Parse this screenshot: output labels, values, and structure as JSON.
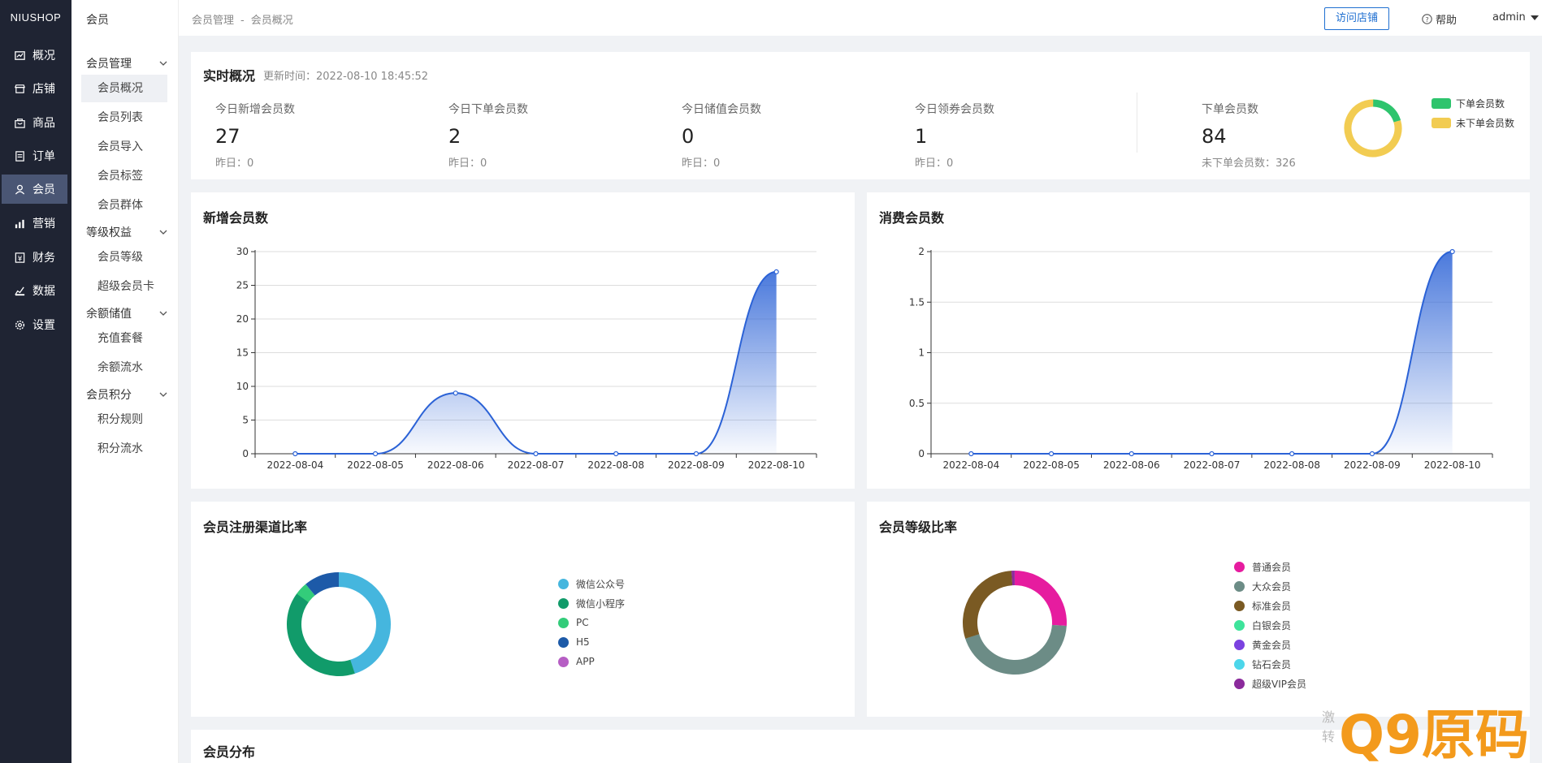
{
  "brand": "NIUSHOP",
  "nav": [
    {
      "label": "概况",
      "icon": "overview-icon"
    },
    {
      "label": "店铺",
      "icon": "store-icon"
    },
    {
      "label": "商品",
      "icon": "goods-icon"
    },
    {
      "label": "订单",
      "icon": "order-icon"
    },
    {
      "label": "会员",
      "icon": "member-icon",
      "active": true
    },
    {
      "label": "营销",
      "icon": "marketing-icon"
    },
    {
      "label": "财务",
      "icon": "finance-icon"
    },
    {
      "label": "数据",
      "icon": "data-icon"
    },
    {
      "label": "设置",
      "icon": "settings-icon"
    }
  ],
  "sidebar": {
    "title": "会员",
    "groups": [
      {
        "label": "会员管理",
        "items": [
          "会员概况",
          "会员列表",
          "会员导入",
          "会员标签",
          "会员群体"
        ]
      },
      {
        "label": "等级权益",
        "items": [
          "会员等级",
          "超级会员卡"
        ]
      },
      {
        "label": "余额储值",
        "items": [
          "充值套餐",
          "余额流水"
        ]
      },
      {
        "label": "会员积分",
        "items": [
          "积分规则",
          "积分流水"
        ]
      }
    ],
    "active_item": "会员概况"
  },
  "header": {
    "breadcrumb": [
      "会员管理",
      "会员概况"
    ],
    "separator": "-",
    "visit_store": "访问店铺",
    "help": "帮助",
    "user": "admin"
  },
  "realtime": {
    "title": "实时概况",
    "update_time": "更新时间：2022-08-10 18:45:52",
    "stats": [
      {
        "label": "今日新增会员数",
        "value": "27",
        "yesterday": "昨日：0"
      },
      {
        "label": "今日下单会员数",
        "value": "2",
        "yesterday": "昨日：0"
      },
      {
        "label": "今日储值会员数",
        "value": "0",
        "yesterday": "昨日：0"
      },
      {
        "label": "今日领券会员数",
        "value": "1",
        "yesterday": "昨日：0"
      }
    ],
    "order_members": {
      "label": "下单会员数",
      "value": "84",
      "sub": "未下单会员数：326"
    }
  },
  "colors": {
    "accent": "#1f6fd1",
    "line": "#2b62d6",
    "order_green": "#2ec46d",
    "no_order_yellow": "#f2cc52"
  },
  "chart_data": [
    {
      "id": "order-ratio",
      "type": "pie",
      "title": "",
      "labels": [
        "下单会员数",
        "未下单会员数"
      ],
      "values": [
        84,
        326
      ],
      "colors": [
        "#2ec46d",
        "#f2cc52"
      ]
    },
    {
      "id": "new-members",
      "type": "area",
      "title": "新增会员数",
      "x": [
        "2022-08-04",
        "2022-08-05",
        "2022-08-06",
        "2022-08-07",
        "2022-08-08",
        "2022-08-09",
        "2022-08-10"
      ],
      "values": [
        0,
        0,
        9,
        0,
        0,
        0,
        27
      ],
      "yticks": [
        "0",
        "5",
        "10",
        "15",
        "20",
        "25",
        "30"
      ],
      "ylim": [
        0,
        30
      ],
      "grid": true
    },
    {
      "id": "consume-members",
      "type": "area",
      "title": "消费会员数",
      "x": [
        "2022-08-04",
        "2022-08-05",
        "2022-08-06",
        "2022-08-07",
        "2022-08-08",
        "2022-08-09",
        "2022-08-10"
      ],
      "values": [
        0,
        0,
        0,
        0,
        0,
        0,
        2
      ],
      "yticks": [
        "0",
        "0.5",
        "1",
        "1.5",
        "2"
      ],
      "ylim": [
        0,
        2
      ],
      "grid": true
    },
    {
      "id": "register-channel",
      "type": "pie",
      "title": "会员注册渠道比率",
      "labels": [
        "微信公众号",
        "微信小程序",
        "PC",
        "H5",
        "APP"
      ],
      "values": [
        45,
        40,
        4,
        11,
        0
      ],
      "colors": [
        "#45b6de",
        "#119b6a",
        "#33cc7a",
        "#1d5aa8",
        "#b65ec4"
      ],
      "legend": "right"
    },
    {
      "id": "member-level",
      "type": "pie",
      "title": "会员等级比率",
      "labels": [
        "普通会员",
        "大众会员",
        "标准会员",
        "白银会员",
        "黄金会员",
        "钻石会员",
        "超级VIP会员"
      ],
      "values": [
        26,
        44,
        29,
        0,
        0,
        0,
        1
      ],
      "colors": [
        "#e61c9f",
        "#6c8c86",
        "#7a5a23",
        "#3ee39b",
        "#7b42e0",
        "#4cd6ea",
        "#8b2a9c"
      ],
      "legend": "right"
    }
  ],
  "distribution": {
    "title": "会员分布"
  },
  "watermark": {
    "text": "Q9原码",
    "small": [
      "激",
      "转"
    ]
  }
}
